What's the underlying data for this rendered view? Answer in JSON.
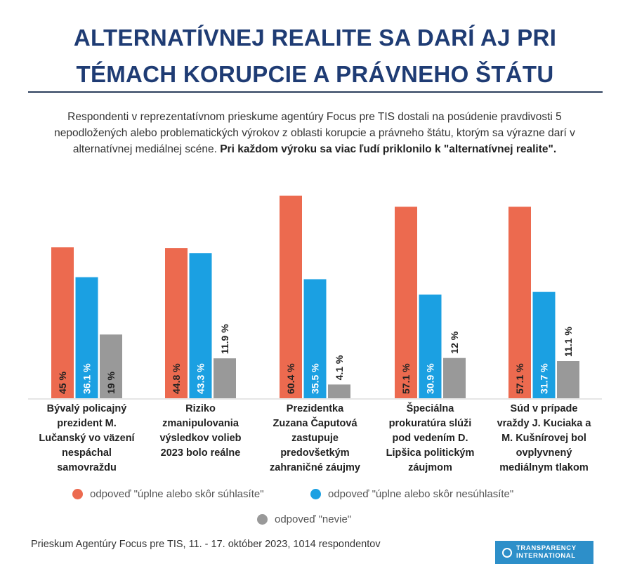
{
  "title": {
    "line1": "ALTERNATÍVNEJ REALITE SA DARÍ AJ PRI",
    "line2": "TÉMACH KORUPCIE A PRÁVNEHO ŠTÁTU"
  },
  "subtitle": {
    "text": "Respondenti v reprezentatívnom prieskume agentúry Focus pre TIS dostali na posúdenie pravdivosti 5 nepodložených alebo problematických výrokov z oblasti korupcie a právneho štátu, ktorým sa výrazne darí v alternatívnej mediálnej scéne.",
    "bold": "Pri každom výroku sa viac ľudí priklonilo k \"alternatívnej realite\"."
  },
  "chart_data": {
    "type": "bar",
    "categories": [
      "Bývalý policajný prezident M. Lučanský vo väzení nespáchal samovraždu",
      "Riziko zmanipulovania výsledkov volieb 2023 bolo reálne",
      "Prezidentka Zuzana Čaputová zastupuje predovšetkým zahraničné záujmy",
      "Špeciálna prokuratúra slúži pod vedením D. Lipšica politickým záujmom",
      "Súd v prípade vraždy J. Kuciaka a M. Kušnírovej bol ovplyvnený mediálnym tlakom"
    ],
    "category_lines": [
      [
        "Bývalý policajný",
        "prezident M.",
        "Lučanský vo väzení",
        "nespáchal",
        "samovraždu"
      ],
      [
        "Riziko",
        "zmanipulovania",
        "výsledkov volieb",
        "2023 bolo reálne"
      ],
      [
        "Prezidentka",
        "Zuzana Čaputová",
        "zastupuje",
        "predovšetkým",
        "zahraničné záujmy"
      ],
      [
        "Špeciálna",
        "prokuratúra slúži",
        "pod vedením D.",
        "Lipšica politickým",
        "záujmom"
      ],
      [
        "Súd v prípade",
        "vraždy J. Kuciaka a",
        "M. Kušnírovej bol",
        "ovplyvnený",
        "mediálnym tlakom"
      ]
    ],
    "series": [
      {
        "name": "odpoveď \"úplne alebo skôr súhlasíte\"",
        "color": "#ec6a4f",
        "values": [
          45,
          44.8,
          60.4,
          57.1,
          57.1
        ],
        "labels": [
          "45 %",
          "44.8 %",
          "60.4 %",
          "57.1 %",
          "57.1 %"
        ]
      },
      {
        "name": "odpoveď \"úplne alebo skôr nesúhlasíte\"",
        "color": "#1ba0e2",
        "values": [
          36.1,
          43.3,
          35.5,
          30.9,
          31.7
        ],
        "labels": [
          "36.1 %",
          "43.3 %",
          "35.5 %",
          "30.9 %",
          "31.7 %"
        ]
      },
      {
        "name": "odpoveď \"nevie\"",
        "color": "#999999",
        "values": [
          19,
          11.9,
          4.1,
          12,
          11.1
        ],
        "labels": [
          "19 %",
          "11.9 %",
          "4.1 %",
          "12 %",
          "11.1 %"
        ]
      }
    ],
    "ylim": [
      0,
      62
    ]
  },
  "footer": "Prieskum Agentúry Focus pre TIS, 11. - 17. október 2023, 1014 respondentov",
  "logo": {
    "line1": "TRANSPARENCY",
    "line2": "INTERNATIONAL"
  }
}
